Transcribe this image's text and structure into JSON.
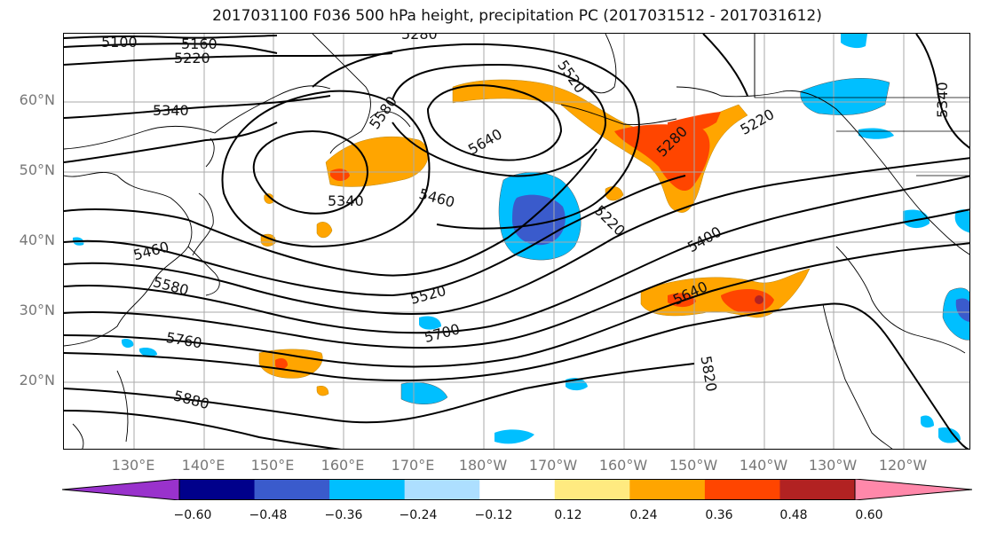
{
  "title": "2017031100 F036 500 hPa height, precipitation PC (2017031512 - 2017031612)",
  "lat_labels": [
    "60°N",
    "50°N",
    "40°N",
    "30°N",
    "20°N"
  ],
  "lon_labels": [
    "130°E",
    "140°E",
    "150°E",
    "160°E",
    "170°E",
    "180°W",
    "170°W",
    "160°W",
    "150°W",
    "140°W",
    "130°W",
    "120°W"
  ],
  "contour_labels": [
    "5100",
    "5160",
    "5220",
    "5280",
    "5340",
    "5580",
    "5640",
    "5520",
    "5280",
    "5220",
    "5340",
    "5460",
    "5220",
    "5400",
    "5460",
    "5580",
    "5520",
    "5640",
    "5700",
    "5760",
    "5820",
    "5880",
    "5340"
  ],
  "colorbar": {
    "ticks": [
      "−0.60",
      "−0.48",
      "−0.36",
      "−0.24",
      "−0.12",
      "0.12",
      "0.24",
      "0.36",
      "0.48",
      "0.60"
    ],
    "colors": [
      "#9932CC",
      "#00008B",
      "#3A5BCC",
      "#00BFFF",
      "#ADDFFF",
      "#FFFFFF",
      "#FFEA80",
      "#FFA500",
      "#FF4500",
      "#B22222",
      "#FF88AA"
    ]
  }
}
